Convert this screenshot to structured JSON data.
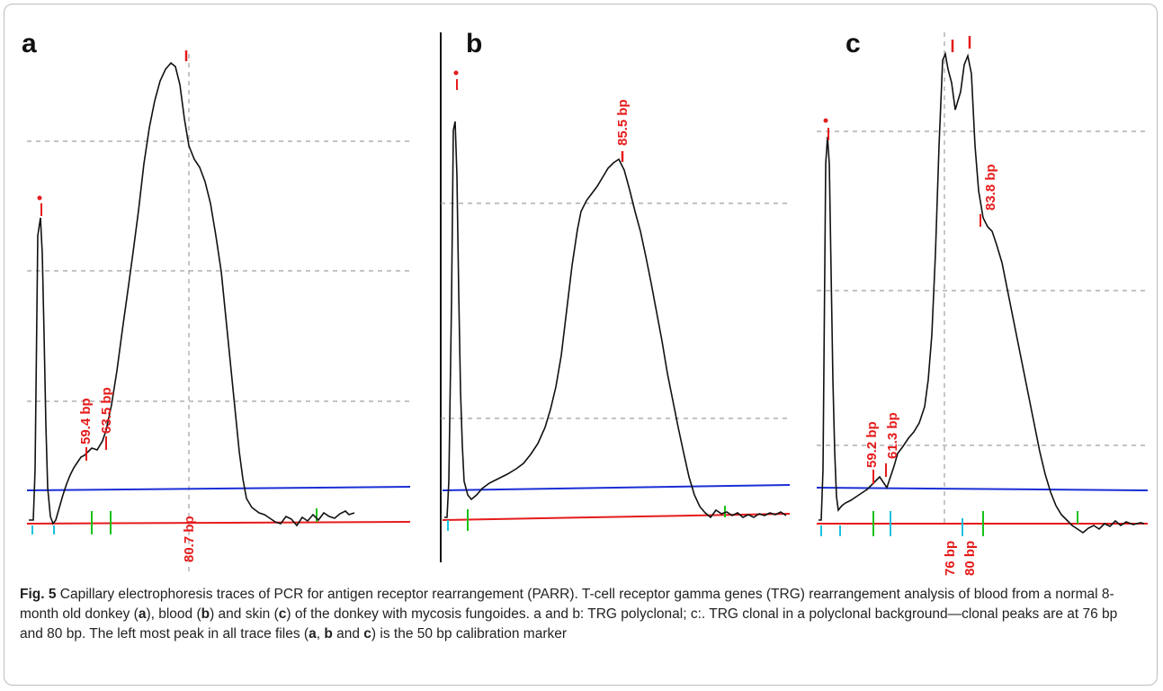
{
  "panels": [
    {
      "letter": "a",
      "peak_labels": [
        "59.4 bp",
        "63.5 bp",
        "80.7 bp"
      ],
      "trace": [
        [
          0,
          4
        ],
        [
          5,
          4
        ],
        [
          7,
          60
        ],
        [
          10,
          320
        ],
        [
          13,
          340
        ],
        [
          15,
          300
        ],
        [
          17,
          210
        ],
        [
          19,
          110
        ],
        [
          21,
          40
        ],
        [
          24,
          8
        ],
        [
          27,
          0
        ],
        [
          30,
          4
        ],
        [
          34,
          18
        ],
        [
          38,
          32
        ],
        [
          42,
          44
        ],
        [
          46,
          54
        ],
        [
          50,
          62
        ],
        [
          54,
          68
        ],
        [
          58,
          74
        ],
        [
          62,
          76
        ],
        [
          66,
          80
        ],
        [
          70,
          84
        ],
        [
          76,
          82
        ],
        [
          82,
          92
        ],
        [
          86,
          104
        ],
        [
          92,
          132
        ],
        [
          98,
          170
        ],
        [
          104,
          215
        ],
        [
          110,
          258
        ],
        [
          116,
          302
        ],
        [
          122,
          348
        ],
        [
          128,
          400
        ],
        [
          134,
          440
        ],
        [
          140,
          470
        ],
        [
          146,
          492
        ],
        [
          152,
          505
        ],
        [
          158,
          512
        ],
        [
          163,
          508
        ],
        [
          168,
          488
        ],
        [
          173,
          450
        ],
        [
          178,
          420
        ],
        [
          184,
          405
        ],
        [
          190,
          396
        ],
        [
          196,
          380
        ],
        [
          202,
          356
        ],
        [
          208,
          320
        ],
        [
          214,
          280
        ],
        [
          218,
          240
        ],
        [
          222,
          200
        ],
        [
          226,
          160
        ],
        [
          230,
          120
        ],
        [
          234,
          80
        ],
        [
          238,
          50
        ],
        [
          242,
          28
        ],
        [
          248,
          18
        ],
        [
          256,
          12
        ],
        [
          262,
          10
        ],
        [
          268,
          6
        ],
        [
          274,
          2
        ],
        [
          280,
          0
        ],
        [
          286,
          8
        ],
        [
          292,
          5
        ],
        [
          298,
          -2
        ],
        [
          304,
          7
        ],
        [
          310,
          3
        ],
        [
          316,
          10
        ],
        [
          322,
          4
        ],
        [
          328,
          12
        ],
        [
          334,
          8
        ],
        [
          340,
          6
        ],
        [
          346,
          11
        ],
        [
          352,
          14
        ],
        [
          356,
          10
        ],
        [
          362,
          12
        ]
      ]
    },
    {
      "letter": "b",
      "trace": [
        [
          0,
          0
        ],
        [
          3,
          0
        ],
        [
          5,
          40
        ],
        [
          8,
          240
        ],
        [
          10,
          430
        ],
        [
          12,
          440
        ],
        [
          14,
          380
        ],
        [
          16,
          250
        ],
        [
          18,
          140
        ],
        [
          20,
          80
        ],
        [
          22,
          40
        ],
        [
          26,
          25
        ],
        [
          30,
          20
        ],
        [
          36,
          25
        ],
        [
          42,
          32
        ],
        [
          50,
          38
        ],
        [
          60,
          43
        ],
        [
          70,
          48
        ],
        [
          80,
          54
        ],
        [
          88,
          60
        ],
        [
          96,
          70
        ],
        [
          104,
          82
        ],
        [
          112,
          100
        ],
        [
          118,
          120
        ],
        [
          124,
          145
        ],
        [
          130,
          180
        ],
        [
          136,
          230
        ],
        [
          142,
          280
        ],
        [
          148,
          320
        ],
        [
          152,
          340
        ],
        [
          158,
          352
        ],
        [
          164,
          360
        ],
        [
          170,
          368
        ],
        [
          176,
          378
        ],
        [
          182,
          388
        ],
        [
          188,
          394
        ],
        [
          194,
          398
        ],
        [
          200,
          386
        ],
        [
          206,
          364
        ],
        [
          212,
          340
        ],
        [
          218,
          318
        ],
        [
          224,
          290
        ],
        [
          230,
          260
        ],
        [
          236,
          228
        ],
        [
          242,
          196
        ],
        [
          248,
          160
        ],
        [
          254,
          130
        ],
        [
          260,
          100
        ],
        [
          266,
          72
        ],
        [
          272,
          45
        ],
        [
          278,
          25
        ],
        [
          284,
          12
        ],
        [
          290,
          5
        ],
        [
          296,
          0
        ],
        [
          302,
          8
        ],
        [
          308,
          4
        ],
        [
          314,
          6
        ],
        [
          320,
          2
        ],
        [
          326,
          5
        ],
        [
          332,
          0
        ],
        [
          338,
          3
        ],
        [
          344,
          0
        ],
        [
          350,
          4
        ],
        [
          356,
          2
        ],
        [
          362,
          5
        ],
        [
          368,
          3
        ],
        [
          374,
          6
        ],
        [
          380,
          2
        ]
      ]
    },
    {
      "letter": "c",
      "peak_labels": [
        "59.2 bp",
        "61.3 bp",
        "83.8 bp",
        "76 bp",
        "80 bp"
      ],
      "trace": [
        [
          0,
          4
        ],
        [
          3,
          4
        ],
        [
          5,
          60
        ],
        [
          8,
          400
        ],
        [
          10,
          430
        ],
        [
          12,
          400
        ],
        [
          14,
          280
        ],
        [
          16,
          160
        ],
        [
          18,
          80
        ],
        [
          20,
          30
        ],
        [
          22,
          15
        ],
        [
          26,
          20
        ],
        [
          30,
          23
        ],
        [
          36,
          26
        ],
        [
          42,
          30
        ],
        [
          48,
          34
        ],
        [
          54,
          38
        ],
        [
          60,
          44
        ],
        [
          64,
          48
        ],
        [
          68,
          52
        ],
        [
          72,
          46
        ],
        [
          76,
          40
        ],
        [
          80,
          52
        ],
        [
          84,
          64
        ],
        [
          88,
          78
        ],
        [
          94,
          86
        ],
        [
          100,
          95
        ],
        [
          106,
          102
        ],
        [
          112,
          112
        ],
        [
          118,
          130
        ],
        [
          122,
          160
        ],
        [
          126,
          210
        ],
        [
          130,
          300
        ],
        [
          134,
          420
        ],
        [
          138,
          515
        ],
        [
          141,
          522
        ],
        [
          144,
          505
        ],
        [
          148,
          490
        ],
        [
          152,
          460
        ],
        [
          155,
          470
        ],
        [
          158,
          480
        ],
        [
          162,
          510
        ],
        [
          166,
          520
        ],
        [
          170,
          500
        ],
        [
          174,
          420
        ],
        [
          178,
          370
        ],
        [
          183,
          340
        ],
        [
          188,
          330
        ],
        [
          193,
          325
        ],
        [
          198,
          310
        ],
        [
          204,
          290
        ],
        [
          210,
          260
        ],
        [
          216,
          230
        ],
        [
          222,
          200
        ],
        [
          228,
          170
        ],
        [
          234,
          140
        ],
        [
          240,
          110
        ],
        [
          246,
          80
        ],
        [
          252,
          55
        ],
        [
          258,
          35
        ],
        [
          264,
          20
        ],
        [
          270,
          10
        ],
        [
          276,
          4
        ],
        [
          282,
          -2
        ],
        [
          288,
          -6
        ],
        [
          294,
          -10
        ],
        [
          300,
          -5
        ],
        [
          306,
          -2
        ],
        [
          312,
          -6
        ],
        [
          318,
          0
        ],
        [
          324,
          -3
        ],
        [
          330,
          3
        ],
        [
          336,
          -2
        ],
        [
          342,
          2
        ],
        [
          350,
          -1
        ],
        [
          358,
          1
        ],
        [
          362,
          0
        ]
      ]
    }
  ],
  "caption": {
    "fig_label": "Fig. 5",
    "text_1": "  Capillary electrophoresis traces of PCR for antigen receptor rearrangement (PARR). T-cell receptor gamma genes (TRG) rearrangement analysis of blood from a normal 8-month old donkey (",
    "text_2": "), blood (",
    "text_3": ") and skin (",
    "text_4": ") of the donkey with mycosis fungoides. a and b: TRG polyclonal; c:. TRG clonal in a polyclonal background—clonal peaks are at 76 bp and 80 bp. The left most peak in all trace files (",
    "text_5": ", ",
    "text_6": " and ",
    "text_7": ") is the 50 bp calibration marker",
    "letter_a": "a",
    "letter_b": "b",
    "letter_c": "c"
  },
  "colors": {
    "trace": "#111111",
    "baseline_red": "#e51b1b",
    "threshold_blue": "#1b2fd6",
    "grid": "#a0a0a0",
    "marker_green": "#19c119",
    "marker_cyan": "#19c1e0",
    "label_red": "#e51b1b"
  }
}
